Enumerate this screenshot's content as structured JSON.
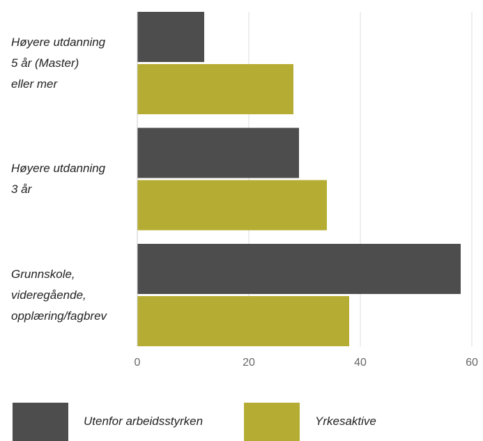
{
  "chart_data": {
    "type": "bar",
    "orientation": "horizontal",
    "categories": [
      "Høyere utdanning\n5 år (Master)\neller mer",
      "Høyere utdanning\n3 år",
      "Grunnskole,\nvideregående,\nopplæring/fagbrev"
    ],
    "series": [
      {
        "name": "Utenfor arbeidsstyrken",
        "color": "#4d4d4d",
        "values": [
          12,
          29,
          58
        ]
      },
      {
        "name": "Yrkesaktive",
        "color": "#b5ad33",
        "values": [
          28,
          34,
          38
        ]
      }
    ],
    "xlim": [
      0,
      60
    ],
    "xticks": [
      0,
      20,
      40,
      60
    ],
    "grid": true
  }
}
